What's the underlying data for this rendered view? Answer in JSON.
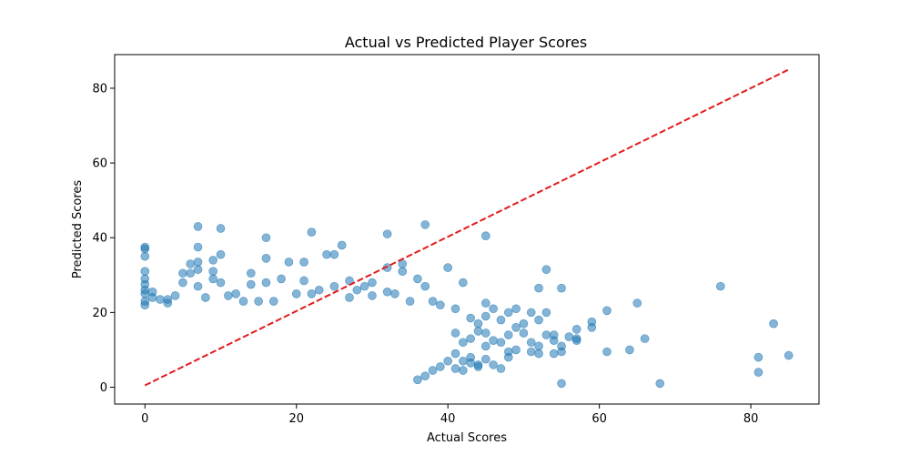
{
  "chart_data": {
    "type": "scatter",
    "title": "Actual vs Predicted Player Scores",
    "xlabel": "Actual Scores",
    "ylabel": "Predicted Scores",
    "xlim": [
      -4,
      89
    ],
    "ylim": [
      -4.5,
      89
    ],
    "xticks": [
      0,
      20,
      40,
      60,
      80
    ],
    "yticks": [
      0,
      20,
      40,
      60,
      80
    ],
    "grid": false,
    "point_color": "#1f77b4",
    "point_alpha": 0.55,
    "series": [
      {
        "points": [
          [
            0,
            37.5
          ],
          [
            0,
            37
          ],
          [
            0,
            35
          ],
          [
            0,
            31
          ],
          [
            0,
            29
          ],
          [
            0,
            27.5
          ],
          [
            0,
            26
          ],
          [
            0,
            25
          ],
          [
            0,
            23
          ],
          [
            0,
            22
          ],
          [
            1,
            25.5
          ],
          [
            1,
            24
          ],
          [
            2,
            23.5
          ],
          [
            3,
            22.5
          ],
          [
            3,
            23.5
          ],
          [
            4,
            24.5
          ],
          [
            5,
            30.5
          ],
          [
            5,
            28
          ],
          [
            6,
            33
          ],
          [
            6,
            30.5
          ],
          [
            7,
            43
          ],
          [
            7,
            37.5
          ],
          [
            7,
            33.5
          ],
          [
            7,
            31.5
          ],
          [
            7,
            27
          ],
          [
            8,
            24
          ],
          [
            9,
            29
          ],
          [
            9,
            31
          ],
          [
            9,
            34
          ],
          [
            10,
            42.5
          ],
          [
            10,
            35.5
          ],
          [
            10,
            28
          ],
          [
            11,
            24.5
          ],
          [
            12,
            25
          ],
          [
            13,
            23
          ],
          [
            14,
            27.5
          ],
          [
            14,
            30.5
          ],
          [
            15,
            23
          ],
          [
            16,
            40
          ],
          [
            16,
            34.5
          ],
          [
            16,
            28
          ],
          [
            17,
            23
          ],
          [
            18,
            29
          ],
          [
            19,
            33.5
          ],
          [
            20,
            25
          ],
          [
            21,
            28.5
          ],
          [
            21,
            33.5
          ],
          [
            22,
            41.5
          ],
          [
            22,
            25
          ],
          [
            23,
            26
          ],
          [
            24,
            35.5
          ],
          [
            25,
            35.5
          ],
          [
            25,
            27
          ],
          [
            26,
            38
          ],
          [
            27,
            28.5
          ],
          [
            27,
            24
          ],
          [
            28,
            26
          ],
          [
            29,
            27
          ],
          [
            30,
            28
          ],
          [
            30,
            24.5
          ],
          [
            32,
            41
          ],
          [
            32,
            32
          ],
          [
            32,
            25.5
          ],
          [
            33,
            25
          ],
          [
            34,
            33
          ],
          [
            34,
            31
          ],
          [
            35,
            23
          ],
          [
            36,
            29
          ],
          [
            37,
            43.5
          ],
          [
            37,
            27
          ],
          [
            38,
            23
          ],
          [
            39,
            22
          ],
          [
            40,
            32
          ],
          [
            41,
            21
          ],
          [
            42,
            28
          ],
          [
            45,
            40.5
          ],
          [
            45,
            22.5
          ],
          [
            43,
            18.5
          ],
          [
            44,
            17
          ],
          [
            45,
            19
          ],
          [
            46,
            21
          ],
          [
            47,
            18
          ],
          [
            48,
            20
          ],
          [
            49,
            16
          ],
          [
            49,
            21
          ],
          [
            50,
            17
          ],
          [
            51,
            20
          ],
          [
            52,
            26.5
          ],
          [
            52,
            18
          ],
          [
            53,
            31.5
          ],
          [
            53,
            20
          ],
          [
            55,
            26.5
          ],
          [
            57,
            15.5
          ],
          [
            59,
            16
          ],
          [
            59,
            17.5
          ],
          [
            61,
            20.5
          ],
          [
            65,
            22.5
          ],
          [
            76,
            27
          ],
          [
            41,
            14.5
          ],
          [
            42,
            12
          ],
          [
            43,
            13
          ],
          [
            44,
            15
          ],
          [
            45,
            14.5
          ],
          [
            45,
            11
          ],
          [
            46,
            12.5
          ],
          [
            47,
            12
          ],
          [
            48,
            14
          ],
          [
            48,
            9.5
          ],
          [
            49,
            10
          ],
          [
            50,
            14.5
          ],
          [
            51,
            12
          ],
          [
            52,
            11
          ],
          [
            53,
            14
          ],
          [
            54,
            14
          ],
          [
            54,
            12.5
          ],
          [
            54,
            9
          ],
          [
            55,
            11
          ],
          [
            55,
            9.5
          ],
          [
            56,
            13.5
          ],
          [
            57,
            13
          ],
          [
            57,
            12.5
          ],
          [
            61,
            9.5
          ],
          [
            64,
            10
          ],
          [
            66,
            13
          ],
          [
            83,
            17
          ],
          [
            41,
            9
          ],
          [
            42,
            7
          ],
          [
            43,
            8
          ],
          [
            44,
            6
          ],
          [
            45,
            7.5
          ],
          [
            46,
            6
          ],
          [
            47,
            5
          ],
          [
            48,
            8
          ],
          [
            51,
            9.5
          ],
          [
            52,
            9
          ],
          [
            55,
            1
          ],
          [
            68,
            1
          ],
          [
            81,
            8
          ],
          [
            81,
            4
          ],
          [
            85,
            8.5
          ],
          [
            36,
            2
          ],
          [
            37,
            3
          ],
          [
            38,
            4.5
          ],
          [
            39,
            5.5
          ],
          [
            40,
            7
          ],
          [
            41,
            5
          ],
          [
            42,
            4.5
          ],
          [
            43,
            6.5
          ],
          [
            44,
            5.5
          ]
        ]
      }
    ],
    "reference_line": {
      "x": [
        0,
        85
      ],
      "y": [
        0.5,
        85
      ],
      "color": "#e31a1c",
      "style": "dashed"
    }
  }
}
